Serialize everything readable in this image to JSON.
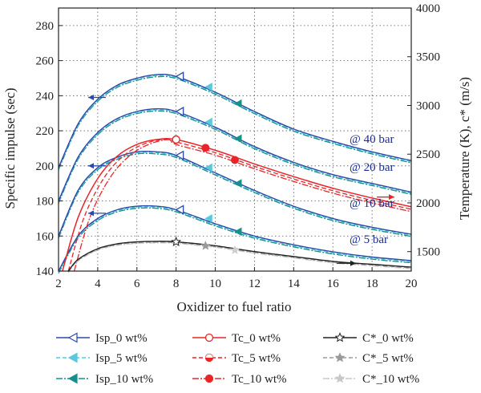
{
  "chart_data": {
    "type": "line",
    "xlabel": "Oxidizer to fuel ratio",
    "ylabel_left": "Specific impulse (sec)",
    "ylabel_right": "Temperature (K), c* (m/s)",
    "xlim": [
      2,
      20
    ],
    "ylim_left": [
      140,
      290
    ],
    "ylim_right": [
      1300,
      4000
    ],
    "x_ticks": [
      2,
      4,
      6,
      8,
      10,
      12,
      14,
      16,
      18,
      20
    ],
    "y_left_ticks": [
      140,
      160,
      180,
      200,
      220,
      240,
      260,
      280
    ],
    "y_right_ticks": [
      1500,
      2000,
      2500,
      3000,
      3500,
      4000
    ],
    "grid": true,
    "annotations": [
      "@ 40 bar",
      "@ 20 bar",
      "@ 10 bar",
      "@ 5 bar"
    ],
    "colors": {
      "isp": "#2b4aa8",
      "isp5": "#5bc8dc",
      "isp10": "#16908c",
      "tc": "#e8262a",
      "cstar": "#222222",
      "cstar_gray": "#9a9a9a"
    },
    "series": [
      {
        "name": "Isp_0 wt%",
        "pressure": "40 bar",
        "x": [
          2,
          3,
          4,
          5,
          6,
          7,
          8,
          10,
          12,
          14,
          16,
          18,
          20
        ],
        "y": [
          199,
          224,
          238,
          246,
          250,
          252,
          251,
          242,
          231,
          221,
          214,
          208,
          203
        ]
      },
      {
        "name": "Isp_0 wt%",
        "pressure": "20 bar",
        "x": [
          2,
          3,
          4,
          5,
          6,
          7,
          8,
          10,
          12,
          14,
          16,
          18,
          20
        ],
        "y": [
          180,
          205,
          219,
          227,
          231,
          232.5,
          231,
          222,
          211,
          202,
          195,
          190,
          185
        ]
      },
      {
        "name": "Isp_0 wt%",
        "pressure": "10 bar",
        "x": [
          2,
          3,
          4,
          5,
          6,
          7,
          8,
          10,
          12,
          14,
          16,
          18,
          20
        ],
        "y": [
          160,
          186,
          199,
          205,
          208,
          208,
          206,
          196,
          186,
          177,
          170,
          165,
          161
        ]
      },
      {
        "name": "Isp_0 wt%",
        "pressure": "5 bar",
        "x": [
          2,
          3,
          4,
          5,
          6,
          7,
          8,
          10,
          12,
          14,
          16,
          18,
          20
        ],
        "y": [
          140,
          160,
          170,
          175,
          177,
          177,
          175,
          167,
          160,
          155,
          151,
          148,
          146
        ]
      },
      {
        "name": "Tc_0 wt%",
        "axis": "right",
        "x": [
          2.2,
          3,
          4,
          5,
          6,
          7,
          8,
          10,
          12,
          14,
          16,
          18,
          20
        ],
        "y": [
          1300,
          1850,
          2250,
          2480,
          2600,
          2650,
          2650,
          2540,
          2400,
          2270,
          2150,
          2050,
          1960
        ]
      },
      {
        "name": "C*_0 wt%",
        "axis": "right",
        "x": [
          2.5,
          3,
          4,
          5,
          6,
          7,
          8,
          10,
          12,
          14,
          16,
          18,
          20
        ],
        "y": [
          1300,
          1420,
          1530,
          1580,
          1600,
          1605,
          1600,
          1560,
          1500,
          1450,
          1400,
          1370,
          1340
        ]
      }
    ],
    "legend": [
      {
        "label": "Isp_0 wt%",
        "color": "#2b4aa8",
        "marker": "triangle-left-open",
        "dash": "solid"
      },
      {
        "label": "Tc_0 wt%",
        "color": "#e8262a",
        "marker": "circle-open",
        "dash": "solid"
      },
      {
        "label": "C*_0 wt%",
        "color": "#222222",
        "marker": "star-open",
        "dash": "solid"
      },
      {
        "label": "Isp_5 wt%",
        "color": "#5bc8dc",
        "marker": "triangle-left-half",
        "dash": "dash"
      },
      {
        "label": "Tc_5 wt%",
        "color": "#e8262a",
        "marker": "circle-half",
        "dash": "dash"
      },
      {
        "label": "C*_5 wt%",
        "color": "#9a9a9a",
        "marker": "star-filled",
        "dash": "dash"
      },
      {
        "label": "Isp_10 wt%",
        "color": "#16908c",
        "marker": "triangle-left-filled",
        "dash": "dashdot"
      },
      {
        "label": "Tc_10 wt%",
        "color": "#e8262a",
        "marker": "circle-filled",
        "dash": "dashdot"
      },
      {
        "label": "C*_10 wt%",
        "color": "#c8c8c8",
        "marker": "star-filled",
        "dash": "dashdot"
      }
    ]
  }
}
